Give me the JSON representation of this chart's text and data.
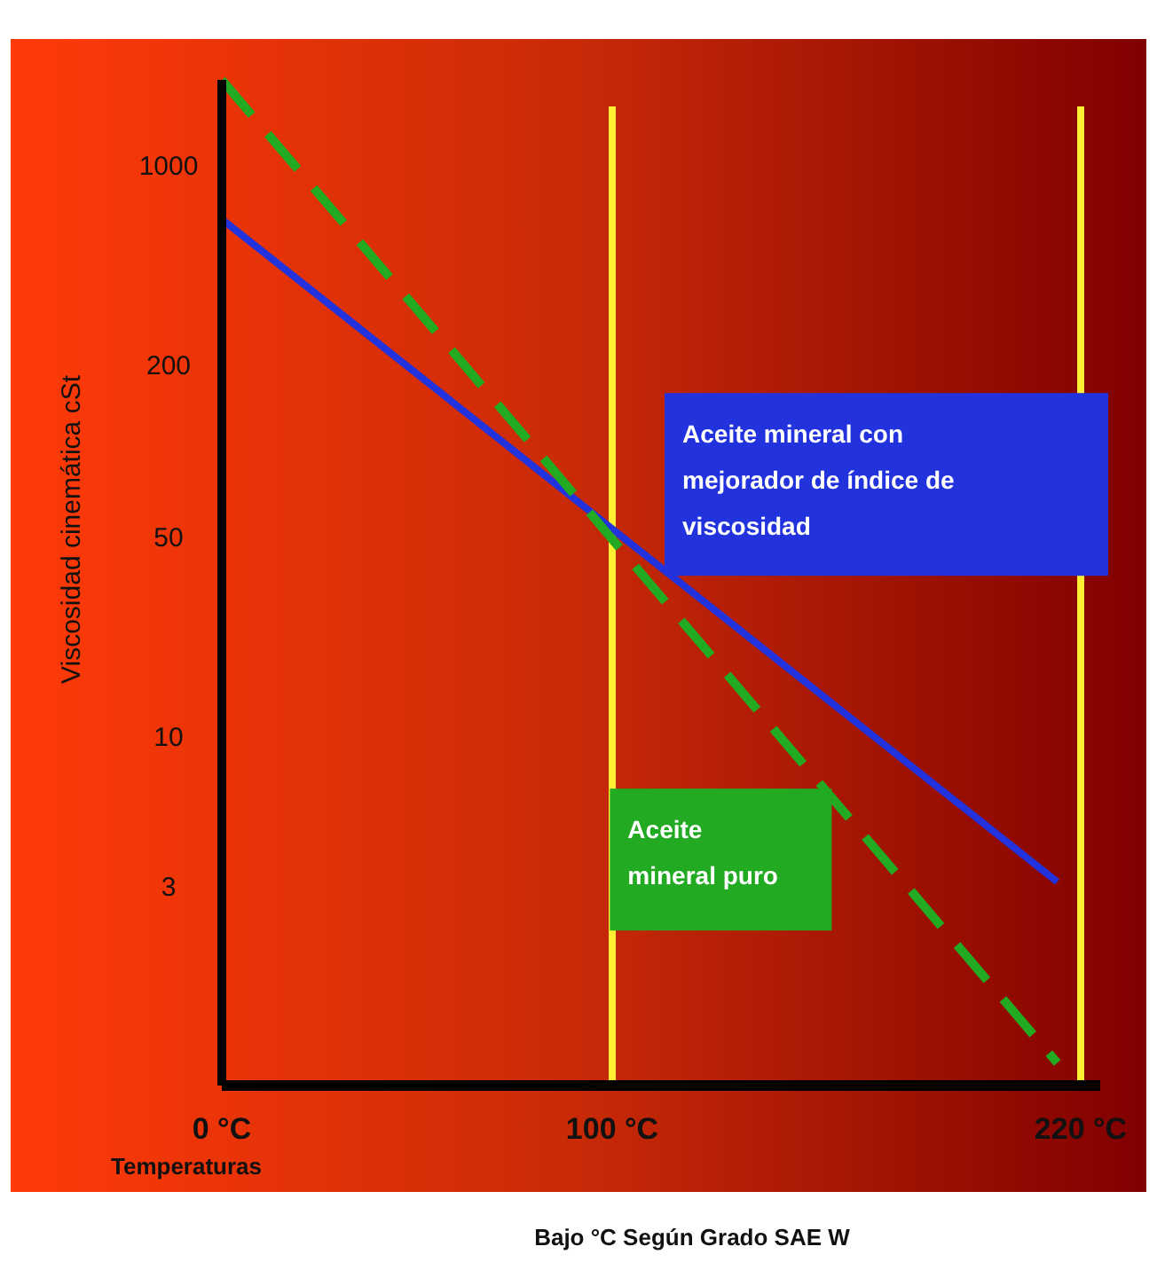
{
  "chart_data": {
    "type": "line",
    "xlabel": "Temperaturas",
    "ylabel": "Viscosidad cinemática cSt",
    "log": "y",
    "xlim": [
      0,
      225
    ],
    "xticks": [
      {
        "value": 0,
        "label": "0  °C"
      },
      {
        "value": 100,
        "label": "100  °C"
      },
      {
        "value": 220,
        "label": "220  °C"
      }
    ],
    "ylim": [
      0.6,
      2000
    ],
    "yticks": [
      3,
      10,
      50,
      200,
      1000
    ],
    "grid": false,
    "x": [
      0,
      214
    ],
    "series": [
      {
        "name": "Aceite mineral con mejorador de índice de viscosidad",
        "color": "#2233dd",
        "line_style": "solid",
        "values": [
          650,
          3.1
        ]
      },
      {
        "name": "Aceite mineral puro",
        "color": "#22aa22",
        "line_style": "dashed",
        "values": [
          2000,
          0.72
        ]
      }
    ],
    "ref_lines": [
      {
        "axis": "x",
        "value": 100,
        "color": "#ffee33"
      },
      {
        "axis": "x",
        "value": 220,
        "color": "#ffee33"
      }
    ],
    "annotations": [
      "Bajo  °C Según Grado  SAE W"
    ]
  }
}
